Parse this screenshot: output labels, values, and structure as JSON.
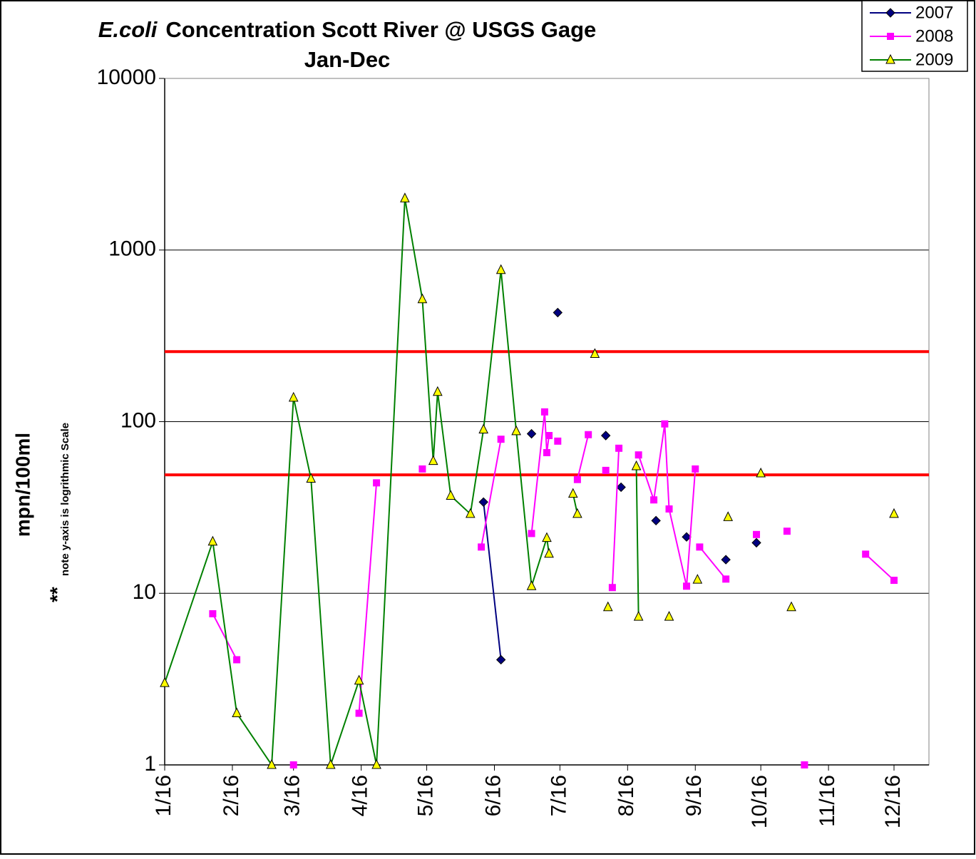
{
  "chart_data": {
    "type": "line",
    "title_italic": "E.coli",
    "title": "Concentration Scott River @ USGS Gage",
    "subtitle": "Jan-Dec",
    "y_label": "mpn/100ml",
    "y_note_prefix": "**",
    "y_note": "note y-axis is logrithmic Scale",
    "log_y": true,
    "grid": true,
    "legend": "top-right",
    "xlim": [
      16,
      366
    ],
    "xticks": [
      {
        "value": 16,
        "label": "1/16"
      },
      {
        "value": 47,
        "label": "2/16"
      },
      {
        "value": 75,
        "label": "3/16"
      },
      {
        "value": 106,
        "label": "4/16"
      },
      {
        "value": 136,
        "label": "5/16"
      },
      {
        "value": 167,
        "label": "6/16"
      },
      {
        "value": 197,
        "label": "7/16"
      },
      {
        "value": 228,
        "label": "8/16"
      },
      {
        "value": 259,
        "label": "9/16"
      },
      {
        "value": 289,
        "label": "10/16"
      },
      {
        "value": 320,
        "label": "11/16"
      },
      {
        "value": 350,
        "label": "12/16"
      }
    ],
    "ylim": [
      1,
      10000
    ],
    "yticks": [
      1,
      10,
      100,
      1000,
      10000
    ],
    "reference_lines": [
      {
        "value": 256,
        "color": "#ff0000"
      },
      {
        "value": 49,
        "color": "#ff0000"
      }
    ],
    "series": [
      {
        "name": "2007",
        "color": "#000080",
        "marker": "diamond",
        "marker_fill": "#000080",
        "x": [
          162,
          170,
          null,
          184,
          null,
          196,
          null,
          218,
          null,
          225,
          null,
          241,
          null,
          255,
          null,
          273,
          null,
          287
        ],
        "values": [
          34,
          4.1,
          null,
          85,
          null,
          432,
          null,
          83,
          null,
          41.5,
          null,
          26.5,
          null,
          21.3,
          null,
          15.7,
          null,
          19.7
        ]
      },
      {
        "name": "2008",
        "color": "#ff00ff",
        "marker": "square",
        "marker_fill": "#ff00ff",
        "x": [
          38,
          49,
          null,
          75,
          null,
          105,
          113,
          null,
          134,
          null,
          161,
          170,
          null,
          184,
          190,
          191,
          192,
          null,
          196,
          null,
          205,
          210,
          null,
          218,
          null,
          221,
          224,
          null,
          233,
          240,
          245,
          247,
          255,
          259,
          null,
          261,
          273,
          null,
          287,
          null,
          301,
          null,
          309,
          null,
          337,
          350
        ],
        "values": [
          7.6,
          4.1,
          null,
          1,
          null,
          2,
          44,
          null,
          53,
          null,
          18.6,
          79,
          null,
          22.3,
          114,
          66,
          83,
          null,
          77,
          null,
          46,
          84,
          null,
          52,
          null,
          10.8,
          70,
          null,
          64,
          35,
          97,
          31,
          11,
          53,
          null,
          18.6,
          12.1,
          null,
          22,
          null,
          23,
          null,
          1,
          null,
          16.9,
          11.9
        ]
      },
      {
        "name": "2009",
        "color": "#008000",
        "marker": "triangle",
        "marker_fill": "#ffff00",
        "x": [
          16,
          38,
          49,
          65,
          75,
          83,
          92,
          105,
          113,
          126,
          134,
          139,
          141,
          147,
          156,
          162,
          170,
          177,
          184,
          191,
          192,
          null,
          203,
          205,
          null,
          213,
          null,
          219,
          null,
          232,
          233,
          null,
          247,
          null,
          260,
          null,
          274,
          null,
          289,
          null,
          303,
          null,
          350
        ],
        "values": [
          3,
          20,
          2,
          1,
          138,
          46.5,
          1,
          3.1,
          1,
          2000,
          517,
          59,
          149,
          37,
          29,
          90,
          765,
          88,
          11,
          21,
          17,
          null,
          38,
          29,
          null,
          248,
          null,
          8.3,
          null,
          55,
          7.3,
          null,
          7.3,
          null,
          12,
          null,
          27.8,
          null,
          50,
          null,
          8.3,
          null,
          29
        ]
      }
    ]
  }
}
